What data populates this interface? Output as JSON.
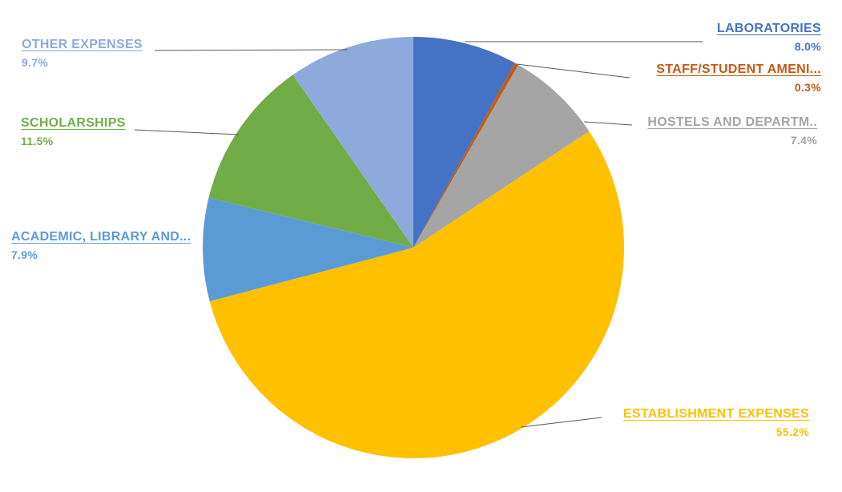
{
  "chart_data": {
    "type": "pie",
    "title": "",
    "legend_position": "none",
    "labels": "outside-with-leader-lines",
    "start_angle_deg": 0,
    "direction": "clockwise",
    "slices": [
      {
        "label": "LABORATORIES",
        "value": 8.0,
        "pct_label": "8.0%",
        "color": "#4472C4"
      },
      {
        "label": "STAFF/STUDENT AMENI...",
        "value": 0.3,
        "pct_label": "0.3%",
        "color": "#C55A11"
      },
      {
        "label": "HOSTELS AND DEPARTM..",
        "value": 7.4,
        "pct_label": "7.4%",
        "color": "#A5A5A5"
      },
      {
        "label": "ESTABLISHMENT EXPENSES",
        "value": 55.2,
        "pct_label": "55.2%",
        "color": "#FFC000"
      },
      {
        "label": "ACADEMIC, LIBRARY AND...",
        "value": 7.9,
        "pct_label": "7.9%",
        "color": "#5B9BD5"
      },
      {
        "label": "SCHOLARSHIPS",
        "value": 11.5,
        "pct_label": "11.5%",
        "color": "#70AD47"
      },
      {
        "label": "OTHER EXPENSES",
        "value": 9.7,
        "pct_label": "9.7%",
        "color": "#8EAADC"
      }
    ],
    "leader_line_color": "#595959"
  }
}
